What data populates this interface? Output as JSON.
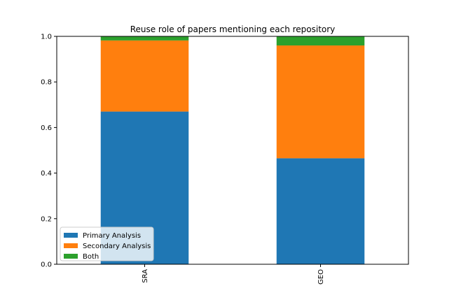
{
  "chart_data": {
    "type": "bar",
    "stacked": true,
    "title": "Reuse role of papers mentioning each repository",
    "xlabel": "",
    "ylabel": "",
    "categories": [
      "SRA",
      "GEO"
    ],
    "series": [
      {
        "name": "Primary Analysis",
        "values": [
          0.67,
          0.465
        ],
        "color": "#1f77b4"
      },
      {
        "name": "Secondary Analysis",
        "values": [
          0.312,
          0.495
        ],
        "color": "#ff7f0e"
      },
      {
        "name": "Both",
        "values": [
          0.018,
          0.04
        ],
        "color": "#2ca02c"
      }
    ],
    "ylim": [
      0,
      1.0
    ],
    "yticks": [
      "0.0",
      "0.2",
      "0.4",
      "0.6",
      "0.8",
      "1.0"
    ],
    "grid": false,
    "legend": "lower-left",
    "x_tick_rotation": 90
  }
}
